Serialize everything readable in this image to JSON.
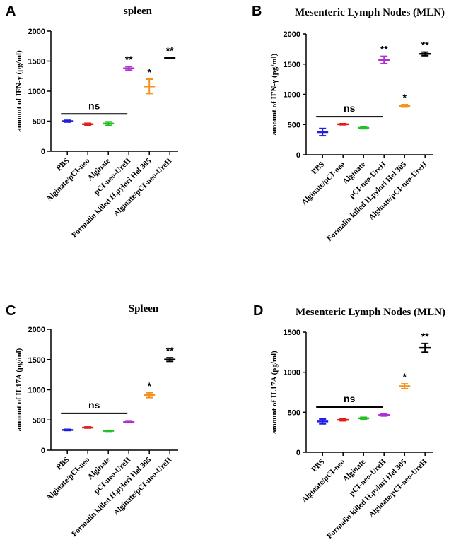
{
  "chart_data": [
    {
      "panel": "A",
      "type": "scatter",
      "title": "spleen",
      "ylabel": "amount of IFN-γ (pg/ml)",
      "ylim": [
        0,
        2000
      ],
      "yticks": [
        0,
        500,
        1000,
        1500,
        2000
      ],
      "categories": [
        "PBS",
        "Alginate/pCI-neo",
        "Alginate",
        "pCI-neo-UreH",
        "Formalin killed H.pylori Hel 305",
        "Alginate/pCI-neo-UreH"
      ],
      "colors": [
        "#1f1fe0",
        "#e01f1f",
        "#22c022",
        "#b030d0",
        "#f5921e",
        "#000000"
      ],
      "values": [
        500,
        450,
        460,
        1380,
        1080,
        1550
      ],
      "errors": [
        15,
        15,
        30,
        30,
        120,
        8
      ],
      "significance": [
        "",
        "",
        "",
        "**",
        "*",
        "**"
      ],
      "ns_label": "ns",
      "ns_level": 620,
      "ns_span": [
        0,
        3
      ]
    },
    {
      "panel": "B",
      "type": "scatter",
      "title": "Mesenteric Lymph Nodes (MLN)",
      "ylabel": "amount of IFN-γ (pg/ml)",
      "ylim": [
        0,
        2000
      ],
      "yticks": [
        0,
        500,
        1000,
        1500,
        2000
      ],
      "categories": [
        "PBS",
        "Alginate/pCI-neo",
        "Alginate",
        "pCI-neo-UreH",
        "Formalin killed H.pylori Hel 305",
        "Alginate/pCI-neo-UreH"
      ],
      "colors": [
        "#1f1fe0",
        "#e01f1f",
        "#22c022",
        "#b030d0",
        "#f5921e",
        "#000000"
      ],
      "values": [
        375,
        505,
        445,
        1570,
        810,
        1670
      ],
      "errors": [
        60,
        10,
        15,
        60,
        20,
        30
      ],
      "significance": [
        "",
        "",
        "",
        "**",
        "*",
        "**"
      ],
      "ns_label": "ns",
      "ns_level": 630,
      "ns_span": [
        0,
        3
      ]
    },
    {
      "panel": "C",
      "type": "scatter",
      "title": "Spleen",
      "ylabel": "amount of IL17A (pg/ml)",
      "ylim": [
        0,
        2000
      ],
      "yticks": [
        0,
        500,
        1000,
        1500,
        2000
      ],
      "categories": [
        "PBS",
        "Alginate/pCI-neo",
        "Alginate",
        "pCI-neo-UreH",
        "Formalin killed H.pylori Hel 305",
        "Alginate/pCI-neo-UreH"
      ],
      "colors": [
        "#1f1fe0",
        "#e01f1f",
        "#22c022",
        "#b030d0",
        "#f5921e",
        "#000000"
      ],
      "values": [
        335,
        375,
        320,
        465,
        910,
        1500
      ],
      "errors": [
        10,
        10,
        8,
        10,
        40,
        30
      ],
      "significance": [
        "",
        "",
        "",
        "",
        "*",
        "**"
      ],
      "ns_label": "ns",
      "ns_level": 610,
      "ns_span": [
        0,
        3
      ]
    },
    {
      "panel": "D",
      "type": "scatter",
      "title": "Mesenteric Lymph Nodes (MLN)",
      "ylabel": "amount of IL17A (pg/ml)",
      "ylim": [
        0,
        1500
      ],
      "yticks": [
        0,
        500,
        1000,
        1500
      ],
      "categories": [
        "PBS",
        "Alginate/pCI-neo",
        "Alginate",
        "pCI-neo-UreH",
        "Formalin killed H.pylori Hel 305",
        "Alginate/pCI-neo-UreH"
      ],
      "colors": [
        "#1f1fe0",
        "#e01f1f",
        "#22c022",
        "#b030d0",
        "#f5921e",
        "#000000"
      ],
      "values": [
        385,
        405,
        425,
        465,
        825,
        1305
      ],
      "errors": [
        30,
        12,
        12,
        12,
        30,
        55
      ],
      "significance": [
        "",
        "",
        "",
        "",
        "*",
        "**"
      ],
      "ns_label": "ns",
      "ns_level": 565,
      "ns_span": [
        0,
        3
      ]
    }
  ]
}
